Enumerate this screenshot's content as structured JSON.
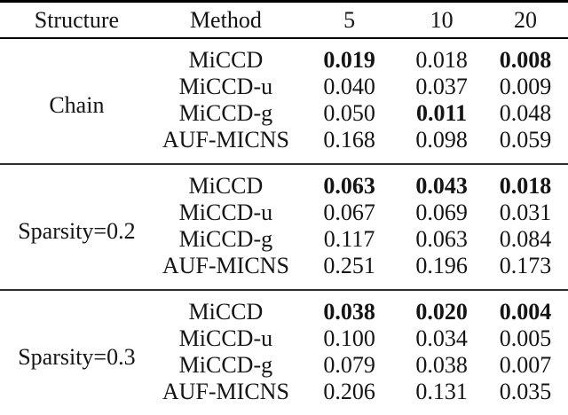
{
  "chart_data": {
    "type": "table",
    "columns": [
      "Structure",
      "Method",
      "5",
      "10",
      "20"
    ],
    "groups": [
      {
        "structure": "Chain",
        "rows": [
          {
            "method": "MiCCD",
            "values": [
              "0.019",
              "0.018",
              "0.008"
            ],
            "bold": [
              true,
              false,
              true
            ]
          },
          {
            "method": "MiCCD-u",
            "values": [
              "0.040",
              "0.037",
              "0.009"
            ],
            "bold": [
              false,
              false,
              false
            ]
          },
          {
            "method": "MiCCD-g",
            "values": [
              "0.050",
              "0.011",
              "0.048"
            ],
            "bold": [
              false,
              true,
              false
            ]
          },
          {
            "method": "AUF-MICNS",
            "values": [
              "0.168",
              "0.098",
              "0.059"
            ],
            "bold": [
              false,
              false,
              false
            ]
          }
        ]
      },
      {
        "structure": "Sparsity=0.2",
        "rows": [
          {
            "method": "MiCCD",
            "values": [
              "0.063",
              "0.043",
              "0.018"
            ],
            "bold": [
              true,
              true,
              true
            ]
          },
          {
            "method": "MiCCD-u",
            "values": [
              "0.067",
              "0.069",
              "0.031"
            ],
            "bold": [
              false,
              false,
              false
            ]
          },
          {
            "method": "MiCCD-g",
            "values": [
              "0.117",
              "0.063",
              "0.084"
            ],
            "bold": [
              false,
              false,
              false
            ]
          },
          {
            "method": "AUF-MICNS",
            "values": [
              "0.251",
              "0.196",
              "0.173"
            ],
            "bold": [
              false,
              false,
              false
            ]
          }
        ]
      },
      {
        "structure": "Sparsity=0.3",
        "rows": [
          {
            "method": "MiCCD",
            "values": [
              "0.038",
              "0.020",
              "0.004"
            ],
            "bold": [
              true,
              true,
              true
            ]
          },
          {
            "method": "MiCCD-u",
            "values": [
              "0.100",
              "0.034",
              "0.005"
            ],
            "bold": [
              false,
              false,
              false
            ]
          },
          {
            "method": "MiCCD-g",
            "values": [
              "0.079",
              "0.038",
              "0.007"
            ],
            "bold": [
              false,
              false,
              false
            ]
          },
          {
            "method": "AUF-MICNS",
            "values": [
              "0.206",
              "0.131",
              "0.035"
            ],
            "bold": [
              false,
              false,
              false
            ]
          }
        ]
      }
    ]
  },
  "colors": {
    "background": "#ffffff",
    "text": "#141414",
    "rule_heavy": "#000000",
    "rule_light": "#2e2e2e"
  }
}
